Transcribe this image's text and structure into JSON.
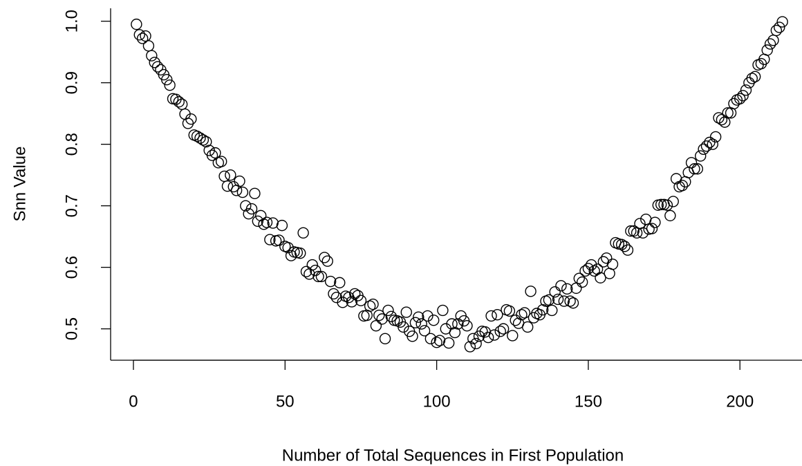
{
  "chart_data": {
    "type": "scatter",
    "x_label": "Number of Total Sequences in First Population",
    "y_label": "Snn Value",
    "x": [
      1,
      2,
      3,
      4,
      5,
      6,
      7,
      8,
      9,
      10,
      11,
      12,
      13,
      14,
      15,
      16,
      17,
      18,
      19,
      20,
      21,
      22,
      23,
      24,
      25,
      26,
      27,
      28,
      29,
      30,
      31,
      32,
      33,
      34,
      35,
      36,
      37,
      38,
      39,
      40,
      41,
      42,
      43,
      44,
      45,
      46,
      47,
      48,
      49,
      50,
      51,
      52,
      53,
      54,
      55,
      56,
      57,
      58,
      59,
      60,
      61,
      62,
      63,
      64,
      65,
      66,
      67,
      68,
      69,
      70,
      71,
      72,
      73,
      74,
      75,
      76,
      77,
      78,
      79,
      80,
      81,
      82,
      83,
      84,
      85,
      86,
      87,
      88,
      89,
      90,
      91,
      92,
      93,
      94,
      95,
      96,
      97,
      98,
      99,
      100,
      101,
      102,
      103,
      104,
      105,
      106,
      107,
      108,
      109,
      110,
      111,
      112,
      113,
      114,
      115,
      116,
      117,
      118,
      119,
      120,
      121,
      122,
      123,
      124,
      125,
      126,
      127,
      128,
      129,
      130,
      131,
      132,
      133,
      134,
      135,
      136,
      137,
      138,
      139,
      140,
      141,
      142,
      143,
      144,
      145,
      146,
      147,
      148,
      149,
      150,
      151,
      152,
      153,
      154,
      155,
      156,
      157,
      158,
      159,
      160,
      161,
      162,
      163,
      164,
      165,
      166,
      167,
      168,
      169,
      170,
      171,
      172,
      173,
      174,
      175,
      176,
      177,
      178,
      179,
      180,
      181,
      182,
      183,
      184,
      185,
      186,
      187,
      188,
      189,
      190,
      191,
      192,
      193,
      194,
      195,
      196,
      197,
      198,
      199,
      200,
      201,
      202,
      203,
      204,
      205,
      206,
      207,
      208,
      209,
      210,
      211,
      212,
      213,
      214
    ],
    "values": [
      0.995,
      0.978,
      0.972,
      0.976,
      0.96,
      0.944,
      0.933,
      0.926,
      0.921,
      0.913,
      0.905,
      0.896,
      0.874,
      0.873,
      0.869,
      0.865,
      0.849,
      0.834,
      0.841,
      0.815,
      0.813,
      0.81,
      0.807,
      0.804,
      0.79,
      0.782,
      0.786,
      0.77,
      0.772,
      0.748,
      0.732,
      0.75,
      0.731,
      0.725,
      0.74,
      0.722,
      0.7,
      0.687,
      0.695,
      0.72,
      0.675,
      0.684,
      0.67,
      0.673,
      0.645,
      0.672,
      0.643,
      0.644,
      0.668,
      0.634,
      0.632,
      0.619,
      0.625,
      0.624,
      0.623,
      0.656,
      0.593,
      0.589,
      0.604,
      0.595,
      0.585,
      0.585,
      0.616,
      0.61,
      0.577,
      0.557,
      0.551,
      0.575,
      0.543,
      0.553,
      0.551,
      0.544,
      0.557,
      0.554,
      0.546,
      0.521,
      0.522,
      0.537,
      0.54,
      0.505,
      0.522,
      0.516,
      0.484,
      0.53,
      0.52,
      0.514,
      0.513,
      0.511,
      0.503,
      0.527,
      0.496,
      0.488,
      0.51,
      0.519,
      0.508,
      0.497,
      0.521,
      0.484,
      0.514,
      0.478,
      0.481,
      0.53,
      0.5,
      0.477,
      0.508,
      0.494,
      0.508,
      0.521,
      0.513,
      0.505,
      0.471,
      0.484,
      0.476,
      0.488,
      0.496,
      0.495,
      0.486,
      0.521,
      0.49,
      0.523,
      0.496,
      0.5,
      0.531,
      0.529,
      0.489,
      0.514,
      0.509,
      0.523,
      0.526,
      0.503,
      0.561,
      0.518,
      0.525,
      0.523,
      0.531,
      0.545,
      0.547,
      0.53,
      0.56,
      0.548,
      0.57,
      0.545,
      0.565,
      0.545,
      0.542,
      0.566,
      0.582,
      0.576,
      0.594,
      0.598,
      0.604,
      0.594,
      0.597,
      0.583,
      0.609,
      0.615,
      0.59,
      0.605,
      0.64,
      0.638,
      0.637,
      0.634,
      0.628,
      0.659,
      0.659,
      0.656,
      0.671,
      0.656,
      0.678,
      0.662,
      0.663,
      0.673,
      0.701,
      0.702,
      0.702,
      0.701,
      0.684,
      0.707,
      0.744,
      0.731,
      0.733,
      0.739,
      0.754,
      0.77,
      0.76,
      0.76,
      0.781,
      0.792,
      0.797,
      0.803,
      0.8,
      0.812,
      0.843,
      0.84,
      0.836,
      0.851,
      0.851,
      0.866,
      0.872,
      0.874,
      0.879,
      0.888,
      0.9,
      0.907,
      0.91,
      0.929,
      0.931,
      0.938,
      0.953,
      0.963,
      0.969,
      0.985,
      0.99,
      0.999
    ],
    "color": "#000000",
    "xlim": [
      -7.52,
      222.52
    ],
    "ylim": [
      0.449,
      1.021
    ],
    "xticks": [
      0,
      50,
      100,
      150,
      200
    ],
    "yticks": [
      0.5,
      0.6,
      0.7,
      0.8,
      0.9,
      {
        "value": 1,
        "label": "1.0"
      }
    ]
  }
}
